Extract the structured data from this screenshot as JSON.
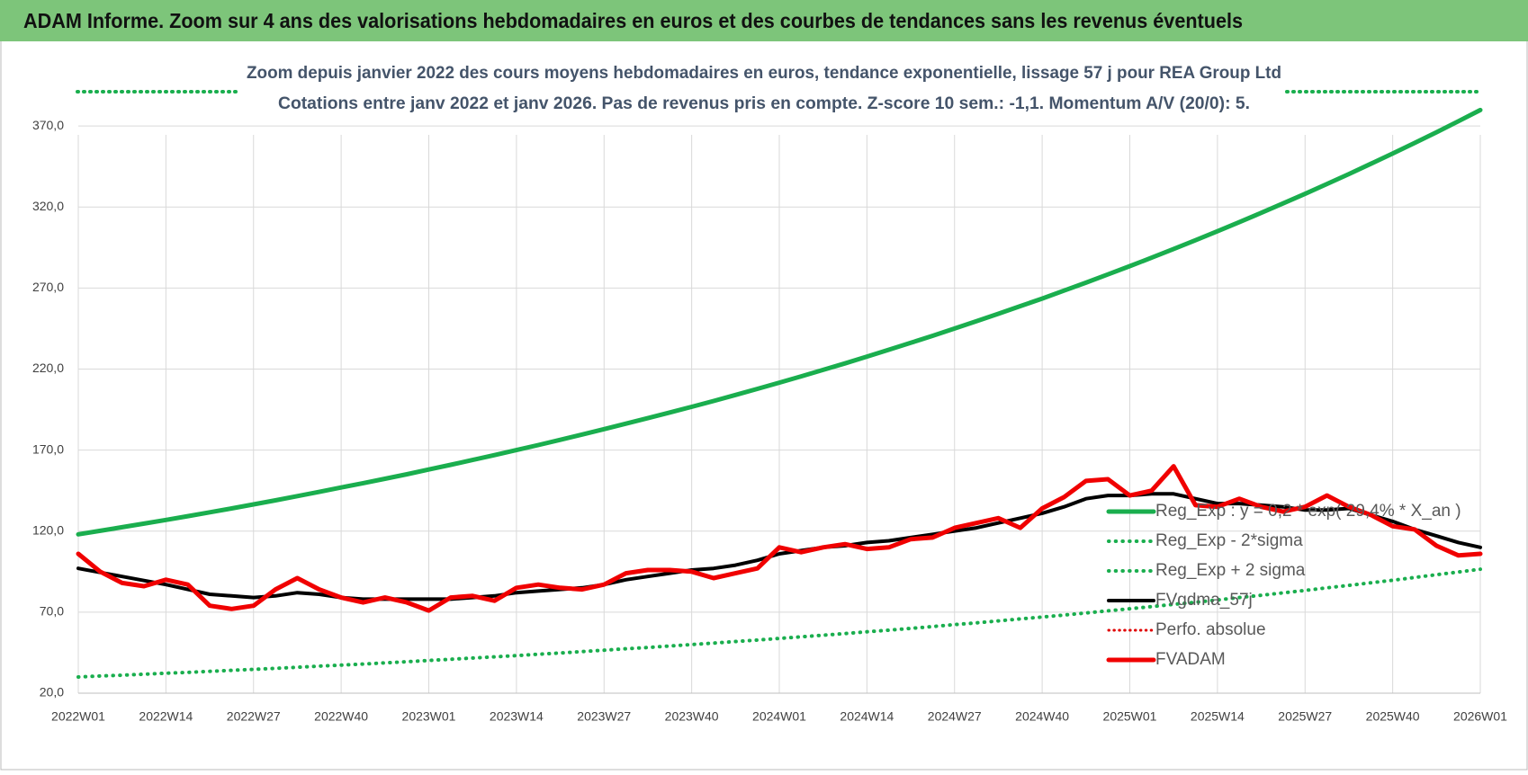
{
  "header": {
    "title": "ADAM Informe. Zoom sur 4 ans des valorisations hebdomadaires en euros et des courbes de tendances sans les revenus éventuels"
  },
  "chart_data": {
    "type": "line",
    "title": "Zoom depuis janvier 2022 des cours moyens hebdomadaires en euros, tendance exponentielle, lissage 57 j pour REA Group Ltd",
    "subtitle": "Cotations entre janv 2022 et janv 2026. Pas de revenus pris en compte. Z-score 10 sem.: -1,1. Momentum A/V (20/0): 5.",
    "categories": [
      "2022W01",
      null,
      null,
      null,
      "2022W14",
      null,
      null,
      null,
      "2022W27",
      null,
      null,
      null,
      "2022W40",
      null,
      null,
      null,
      "2023W01",
      null,
      null,
      null,
      "2023W14",
      null,
      null,
      null,
      "2023W27",
      null,
      null,
      null,
      "2023W40",
      null,
      null,
      null,
      "2024W01",
      null,
      null,
      null,
      "2024W14",
      null,
      null,
      null,
      "2024W27",
      null,
      null,
      null,
      "2024W40",
      null,
      null,
      null,
      "2025W01",
      null,
      null,
      null,
      "2025W14",
      null,
      null,
      null,
      "2025W27",
      null,
      null,
      null,
      "2025W40",
      null,
      null,
      null,
      "2026W01"
    ],
    "ylim": [
      20,
      395
    ],
    "yticks": [
      {
        "value": 20,
        "label": "20,0"
      },
      {
        "value": 70,
        "label": "70,0"
      },
      {
        "value": 120,
        "label": "120,0"
      },
      {
        "value": 170,
        "label": "170,0"
      },
      {
        "value": 220,
        "label": "220,0"
      },
      {
        "value": 270,
        "label": "270,0"
      },
      {
        "value": 320,
        "label": "320,0"
      },
      {
        "value": 370,
        "label": "370,0"
      }
    ],
    "grid": true,
    "legend": "right",
    "series": [
      {
        "name": "Reg_Exp : y = 0,2 * exp( 29,4% * X_an )",
        "color": "#1aae4e",
        "style": "solid",
        "width": 5,
        "values": [
          118.0,
          120.2,
          122.4,
          124.6,
          126.9,
          129.2,
          131.6,
          134.0,
          136.5,
          139.0,
          141.6,
          144.2,
          146.9,
          149.6,
          152.3,
          155.1,
          158.0,
          160.9,
          163.9,
          166.9,
          170.0,
          173.1,
          176.3,
          179.6,
          182.9,
          186.3,
          189.7,
          193.2,
          196.7,
          200.3,
          204.0,
          207.8,
          211.6,
          215.5,
          219.5,
          223.5,
          227.7,
          231.9,
          236.2,
          240.5,
          245.0,
          249.5,
          254.1,
          258.8,
          263.5,
          268.4,
          273.3,
          278.4,
          283.5,
          288.7,
          294.1,
          299.5,
          305.0,
          310.6,
          316.4,
          322.2,
          328.1,
          334.2,
          340.3,
          346.6,
          353.0,
          359.5,
          366.1,
          372.9,
          379.8
        ]
      },
      {
        "name": "Reg_Exp - 2*sigma",
        "color": "#1aae4e",
        "style": "dotted",
        "width": 4,
        "values": [
          30.0,
          30.6,
          31.1,
          31.7,
          32.3,
          32.8,
          33.5,
          34.1,
          34.7,
          35.3,
          36.0,
          36.7,
          37.3,
          38.0,
          38.7,
          39.4,
          40.2,
          40.9,
          41.7,
          42.4,
          43.2,
          44.0,
          44.8,
          45.7,
          46.5,
          47.4,
          48.2,
          49.1,
          50.0,
          50.9,
          51.9,
          52.8,
          53.8,
          54.8,
          55.8,
          56.8,
          57.9,
          58.9,
          60.0,
          61.1,
          62.3,
          63.4,
          64.6,
          65.8,
          67.0,
          68.2,
          69.5,
          70.8,
          72.1,
          73.4,
          74.8,
          76.1,
          77.5,
          79.0,
          80.4,
          81.9,
          83.4,
          85.0,
          86.5,
          88.1,
          89.7,
          91.4,
          93.1,
          94.8,
          96.5
        ]
      },
      {
        "name": "Reg_Exp + 2 sigma",
        "color": "#1aae4e",
        "style": "dotted",
        "width": 4,
        "values": [
          null,
          null,
          null,
          null,
          null,
          null,
          null,
          null,
          null,
          null,
          null,
          null,
          null,
          null,
          null,
          null,
          null,
          null,
          null,
          null,
          null,
          null,
          null,
          null,
          null,
          null,
          null,
          null,
          null,
          null,
          null,
          null,
          null,
          null,
          null,
          null,
          null,
          null,
          null,
          null,
          null,
          null,
          null,
          null,
          null,
          null,
          null,
          null,
          null,
          null,
          null,
          null,
          null,
          null,
          null,
          null,
          null,
          null,
          null,
          null,
          null,
          null,
          null,
          null,
          null
        ]
      },
      {
        "name": "FVgdma_57j",
        "color": "#000000",
        "style": "solid",
        "width": 4,
        "values": [
          97,
          94.5,
          92,
          89.5,
          87,
          84,
          81,
          80,
          79,
          80,
          82,
          81,
          79,
          78,
          78,
          78,
          78,
          78,
          79,
          80,
          82,
          83,
          84,
          85,
          87,
          90,
          92,
          94,
          96,
          97,
          99,
          102,
          106,
          108,
          110,
          111,
          113,
          114,
          116,
          118,
          120,
          122,
          125,
          128,
          131,
          135,
          140,
          142,
          142,
          143,
          143,
          140,
          137,
          137,
          136,
          135,
          133,
          133,
          134,
          130,
          126,
          121,
          117,
          113,
          110
        ]
      },
      {
        "name": "Perfo. absolue",
        "color": "#e00000",
        "style": "dotted",
        "width": 3,
        "values": [
          null,
          null,
          null,
          null,
          null,
          null,
          null,
          null,
          null,
          null,
          null,
          null,
          null,
          null,
          null,
          null,
          null,
          null,
          null,
          null,
          null,
          null,
          null,
          null,
          null,
          null,
          null,
          null,
          null,
          null,
          null,
          null,
          null,
          null,
          null,
          null,
          null,
          null,
          null,
          null,
          null,
          null,
          null,
          null,
          null,
          null,
          null,
          null,
          null,
          null,
          null,
          null,
          null,
          null,
          null,
          null,
          null,
          null,
          null,
          null,
          null,
          null,
          null,
          null,
          null
        ]
      },
      {
        "name": "FVADAM",
        "color": "#f00000",
        "style": "solid",
        "width": 5,
        "values": [
          106,
          95,
          88,
          86,
          90,
          87,
          74,
          72,
          74,
          84,
          91,
          84,
          79,
          76,
          79,
          76,
          71,
          79,
          80,
          77,
          85,
          87,
          85,
          84,
          87,
          94,
          96,
          96,
          95,
          91,
          94,
          97,
          110,
          107,
          110,
          112,
          109,
          110,
          115,
          116,
          122,
          125,
          128,
          122,
          134,
          141,
          151,
          152,
          142,
          145,
          160,
          136,
          135,
          140,
          135,
          132,
          135,
          142,
          135,
          130,
          123,
          121,
          111,
          105,
          106
        ]
      }
    ]
  }
}
